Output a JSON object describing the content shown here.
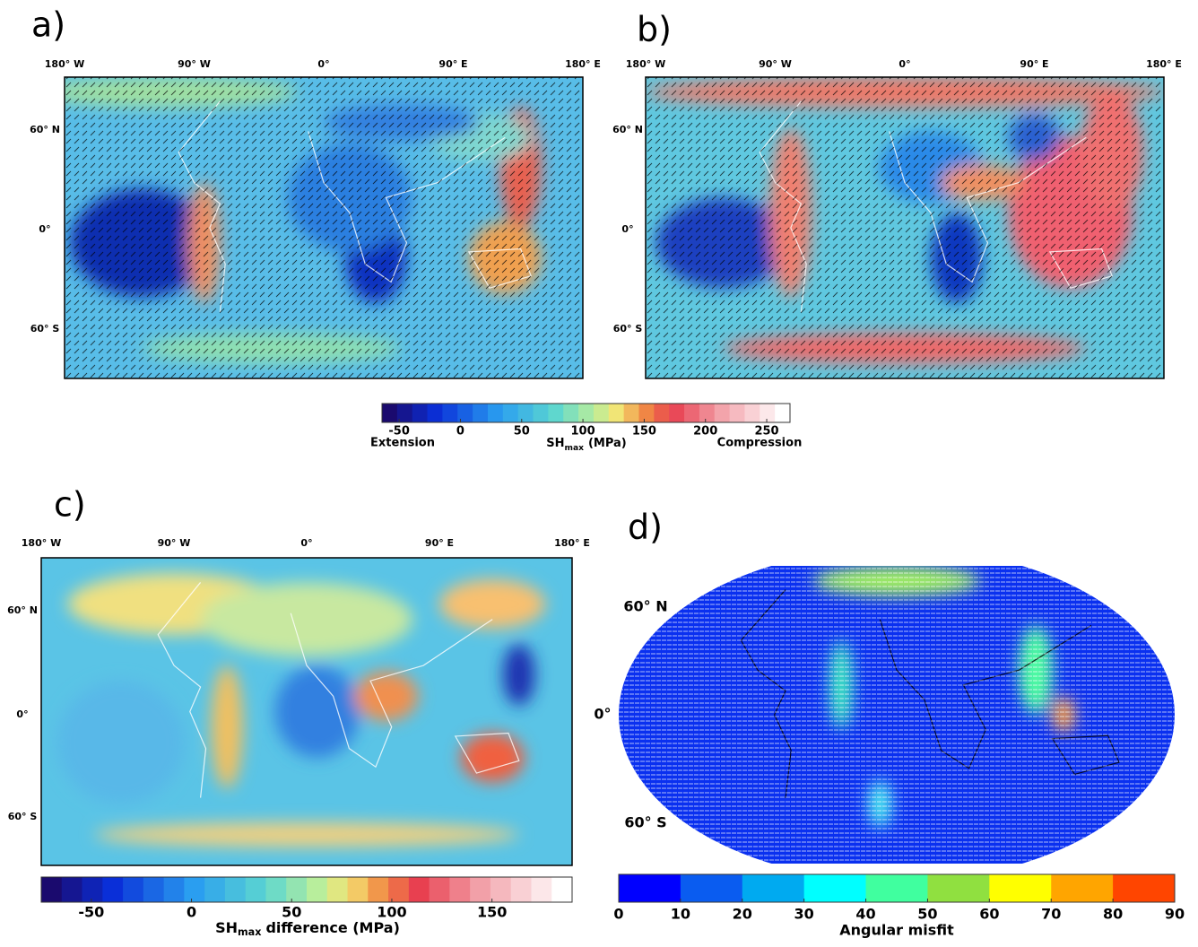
{
  "panels": {
    "a": {
      "label": "a)",
      "lon_labels": [
        "180° W",
        "90° W",
        "0°",
        "90° E",
        "180° E"
      ],
      "lat_labels": [
        "60° N",
        "0°",
        "60° S"
      ]
    },
    "b": {
      "label": "b)",
      "lon_labels": [
        "180° W",
        "90° W",
        "0°",
        "90° E",
        "180° E"
      ],
      "lat_labels": [
        "60° N",
        "0°",
        "60° S"
      ]
    },
    "c": {
      "label": "c)",
      "lon_labels": [
        "180° W",
        "90° W",
        "0°",
        "90° E",
        "180° E"
      ],
      "lat_labels": [
        "60° N",
        "0°",
        "60° S"
      ]
    },
    "d": {
      "label": "d)",
      "lat_labels": [
        "60° N",
        "0°",
        "60° S"
      ]
    }
  },
  "colorbar_ab": {
    "range": [
      -64,
      269
    ],
    "ticks": [
      -50,
      0,
      50,
      100,
      150,
      200,
      250
    ],
    "left_label": "Extension",
    "right_label": "Compression",
    "title": {
      "main": "SH",
      "sub": "max",
      "rest": "(MPa)"
    }
  },
  "colorbar_c": {
    "range": [
      -75,
      190
    ],
    "ticks": [
      -50,
      0,
      50,
      100,
      150
    ],
    "title": {
      "main": "SH",
      "sub": "max",
      "rest": "difference (MPa)"
    }
  },
  "colorbar_d": {
    "range": [
      0,
      90
    ],
    "ticks": [
      0,
      10,
      20,
      30,
      40,
      50,
      60,
      70,
      80,
      90
    ],
    "title": "Angular misfit"
  }
}
